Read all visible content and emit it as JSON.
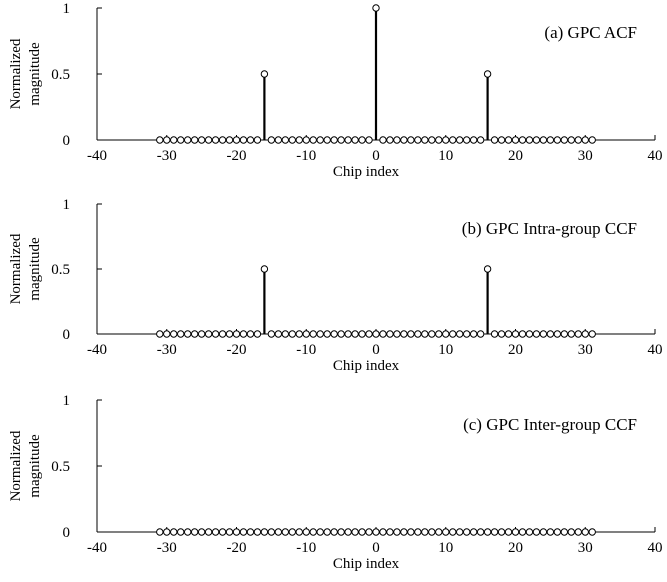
{
  "chart_data": [
    {
      "type": "stem",
      "annotation": "(a) GPC ACF",
      "xlabel": "Chip index",
      "ylabel": [
        "Normalized",
        "magnitude"
      ],
      "xlim": [
        -40,
        40
      ],
      "ylim": [
        0,
        1
      ],
      "x_ticks": [
        "-40",
        "-30",
        "-20",
        "-10",
        "0",
        "10",
        "20",
        "30",
        "40"
      ],
      "y_ticks": [
        "0",
        "0.5",
        "1"
      ],
      "x_range": [
        -31,
        31
      ],
      "peaks": [
        {
          "x": -16,
          "y": 0.5
        },
        {
          "x": 0,
          "y": 1
        },
        {
          "x": 16,
          "y": 0.5
        }
      ],
      "default_y": 0
    },
    {
      "type": "stem",
      "annotation": "(b) GPC Intra-group CCF",
      "xlabel": "Chip index",
      "ylabel": [
        "Normalized",
        "magnitude"
      ],
      "xlim": [
        -40,
        40
      ],
      "ylim": [
        0,
        1
      ],
      "x_ticks": [
        "-40",
        "-30",
        "-20",
        "-10",
        "0",
        "10",
        "20",
        "30",
        "40"
      ],
      "y_ticks": [
        "0",
        "0.5",
        "1"
      ],
      "x_range": [
        -31,
        31
      ],
      "peaks": [
        {
          "x": -16,
          "y": 0.5
        },
        {
          "x": 16,
          "y": 0.5
        }
      ],
      "default_y": 0
    },
    {
      "type": "stem",
      "annotation": "(c) GPC Inter-group CCF",
      "xlabel": "Chip index",
      "ylabel": [
        "Normalized",
        "magnitude"
      ],
      "xlim": [
        -40,
        40
      ],
      "ylim": [
        0,
        1
      ],
      "x_ticks": [
        "-40",
        "-30",
        "-20",
        "-10",
        "0",
        "10",
        "20",
        "30",
        "40"
      ],
      "y_ticks": [
        "0",
        "0.5",
        "1"
      ],
      "x_range": [
        -31,
        31
      ],
      "peaks": [],
      "default_y": 0
    }
  ]
}
